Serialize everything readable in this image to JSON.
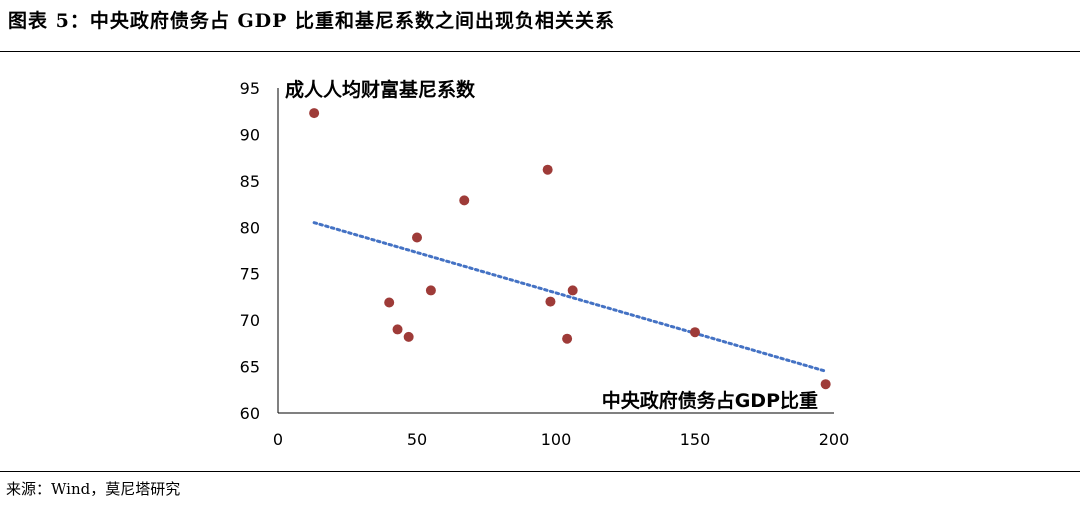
{
  "header": {
    "title": "图表 5：中央政府债务占 GDP 比重和基尼系数之间出现负相关关系"
  },
  "footer": {
    "source": "来源：Wind，莫尼塔研究"
  },
  "colors": {
    "point": "#9e3b38",
    "trendline": "#4472c4",
    "axis": "#000000"
  },
  "chart_data": {
    "type": "scatter",
    "title": "",
    "xlabel": "中央政府债务占GDP比重",
    "ylabel": "成人人均财富基尼系数",
    "xlim": [
      0,
      200
    ],
    "ylim": [
      60,
      95
    ],
    "xticks": [
      0,
      50,
      100,
      150,
      200
    ],
    "yticks": [
      60,
      65,
      70,
      75,
      80,
      85,
      90,
      95
    ],
    "grid": false,
    "legend": "none",
    "points": [
      {
        "x": 13,
        "y": 92.3
      },
      {
        "x": 40,
        "y": 71.9
      },
      {
        "x": 43,
        "y": 69.0
      },
      {
        "x": 47,
        "y": 68.2
      },
      {
        "x": 50,
        "y": 78.9
      },
      {
        "x": 55,
        "y": 73.2
      },
      {
        "x": 67,
        "y": 82.9
      },
      {
        "x": 97,
        "y": 86.2
      },
      {
        "x": 98,
        "y": 72.0
      },
      {
        "x": 104,
        "y": 68.0
      },
      {
        "x": 106,
        "y": 73.2
      },
      {
        "x": 150,
        "y": 68.7
      },
      {
        "x": 197,
        "y": 63.1
      }
    ],
    "trendline": {
      "style": "dotted",
      "from": {
        "x": 13,
        "y": 80.5
      },
      "to": {
        "x": 197,
        "y": 64.5
      }
    }
  }
}
